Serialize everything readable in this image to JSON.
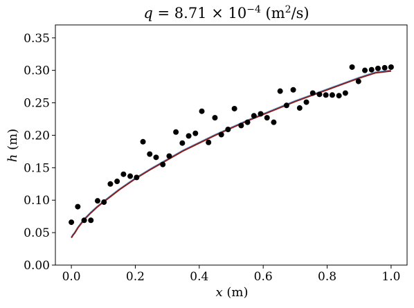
{
  "chart_data": {
    "type": "scatter",
    "title": "q = 8.71 × 10⁻⁴ (m²/s)",
    "title_parts": {
      "var": "q",
      "eq": " = 8.71 × 10",
      "exp": "−4",
      "unit_open": " (m",
      "unit_exp": "2",
      "unit_close": "/s)"
    },
    "xlabel": "x (m)",
    "xlabel_parts": {
      "var": "x",
      "unit": " (m)"
    },
    "ylabel": "h (m)",
    "ylabel_parts": {
      "var": "h",
      "unit": " (m)"
    },
    "xlim": [
      -0.05,
      1.05
    ],
    "ylim": [
      0.0,
      0.37
    ],
    "xticks": [
      "0.0",
      "0.2",
      "0.4",
      "0.6",
      "0.8",
      "1.0"
    ],
    "yticks": [
      "0.00",
      "0.05",
      "0.10",
      "0.15",
      "0.20",
      "0.25",
      "0.30",
      "0.35"
    ],
    "grid": false,
    "series": [
      {
        "kind": "scatter",
        "color": "#000000",
        "x": [
          0.0,
          0.02,
          0.04,
          0.061,
          0.082,
          0.102,
          0.122,
          0.143,
          0.163,
          0.184,
          0.204,
          0.224,
          0.245,
          0.265,
          0.286,
          0.306,
          0.327,
          0.347,
          0.367,
          0.388,
          0.408,
          0.429,
          0.449,
          0.469,
          0.49,
          0.51,
          0.531,
          0.551,
          0.571,
          0.592,
          0.612,
          0.633,
          0.653,
          0.673,
          0.694,
          0.714,
          0.735,
          0.755,
          0.776,
          0.796,
          0.816,
          0.837,
          0.857,
          0.878,
          0.898,
          0.918,
          0.939,
          0.959,
          0.98,
          1.0
        ],
        "y": [
          0.066,
          0.09,
          0.069,
          0.069,
          0.099,
          0.097,
          0.125,
          0.129,
          0.14,
          0.137,
          0.135,
          0.19,
          0.171,
          0.166,
          0.155,
          0.168,
          0.205,
          0.188,
          0.199,
          0.203,
          0.237,
          0.189,
          0.227,
          0.201,
          0.209,
          0.241,
          0.215,
          0.22,
          0.23,
          0.233,
          0.227,
          0.22,
          0.268,
          0.246,
          0.27,
          0.242,
          0.251,
          0.265,
          0.263,
          0.262,
          0.262,
          0.261,
          0.265,
          0.305,
          0.283,
          0.3,
          0.301,
          0.303,
          0.304,
          0.305
        ]
      },
      {
        "kind": "line",
        "color": "#5b9bd5",
        "x": [
          0.0,
          0.005,
          0.01,
          0.02,
          0.04,
          0.06,
          0.08,
          0.1,
          0.15,
          0.2,
          0.25,
          0.3,
          0.35,
          0.4,
          0.45,
          0.5,
          0.55,
          0.6,
          0.65,
          0.7,
          0.75,
          0.8,
          0.85,
          0.9,
          0.95,
          1.0
        ],
        "y": [
          0.043,
          0.047,
          0.05,
          0.058,
          0.071,
          0.081,
          0.09,
          0.098,
          0.117,
          0.134,
          0.149,
          0.163,
          0.177,
          0.189,
          0.201,
          0.212,
          0.223,
          0.233,
          0.243,
          0.253,
          0.262,
          0.271,
          0.28,
          0.289,
          0.297,
          0.3
        ]
      },
      {
        "kind": "line",
        "color": "#8b1a1a",
        "x": [
          0.0,
          0.005,
          0.01,
          0.02,
          0.04,
          0.06,
          0.08,
          0.1,
          0.15,
          0.2,
          0.25,
          0.3,
          0.35,
          0.4,
          0.45,
          0.5,
          0.55,
          0.6,
          0.65,
          0.7,
          0.75,
          0.8,
          0.85,
          0.9,
          0.95,
          1.0
        ],
        "y": [
          0.042,
          0.046,
          0.049,
          0.057,
          0.07,
          0.08,
          0.089,
          0.097,
          0.116,
          0.133,
          0.148,
          0.162,
          0.176,
          0.188,
          0.2,
          0.211,
          0.222,
          0.232,
          0.242,
          0.252,
          0.261,
          0.27,
          0.279,
          0.288,
          0.296,
          0.299
        ]
      }
    ]
  }
}
